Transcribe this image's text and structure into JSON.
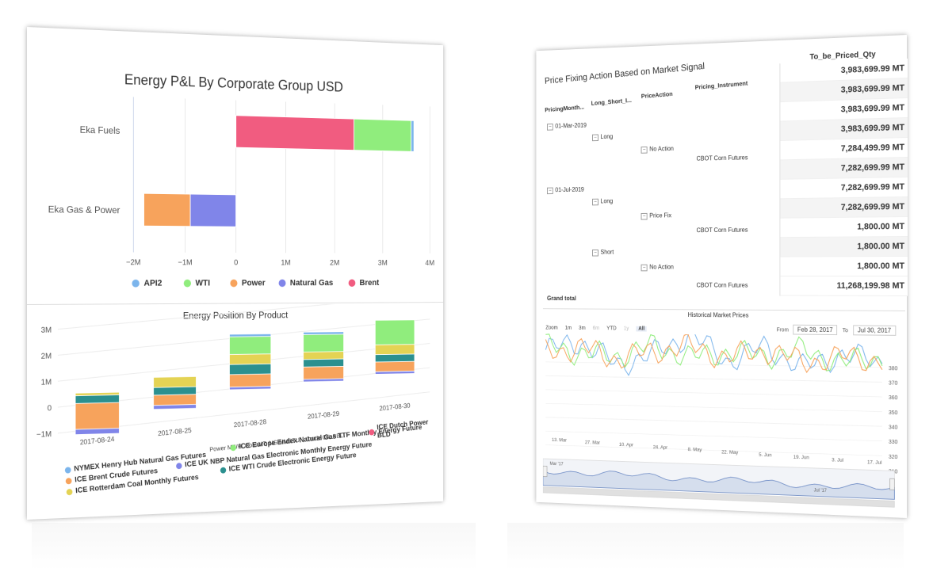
{
  "pnl": {
    "title": "Energy P&L By Corporate Group USD",
    "groups": [
      "Eka Fuels",
      "Eka Gas & Power"
    ],
    "x_ticks": [
      "−2M",
      "−1M",
      "0",
      "1M",
      "2M",
      "3M",
      "4M"
    ],
    "legend": [
      {
        "label": "API2",
        "color": "#7cb5ec"
      },
      {
        "label": "WTI",
        "color": "#90ed7d"
      },
      {
        "label": "Power",
        "color": "#f7a35c"
      },
      {
        "label": "Natural Gas",
        "color": "#8085e9"
      },
      {
        "label": "Brent",
        "color": "#f15c80"
      }
    ]
  },
  "position": {
    "title": "Energy Position By Product",
    "y_ticks": [
      "3M",
      "2M",
      "1M",
      "0",
      "−1M"
    ],
    "x_ticks": [
      "2017-08-24",
      "2017-08-25",
      "2017-08-28",
      "2017-08-29",
      "2017-08-30"
    ],
    "axis_title": "Power MWH, Coal MT, NG MMBTU, , Crude OIL BBL",
    "legend": [
      {
        "label": "NYMEX Henry Hub Natural Gas Futures",
        "color": "#7cb5ec"
      },
      {
        "label": "ICE Europe Endex Natural Gas TTF Monthly Energy Future",
        "color": "#90ed7d"
      },
      {
        "label": "ICE Dutch Power BLD",
        "color": "#f15c80"
      },
      {
        "label": "ICE Brent Crude Futures",
        "color": "#f7a35c"
      },
      {
        "label": "ICE UK NBP Natural Gas Electronic Monthly Energy Future",
        "color": "#8085e9"
      },
      {
        "label": "ICE Rotterdam Coal Monthly Futures",
        "color": "#e4d354"
      },
      {
        "label": "ICE WTI Crude Electronic Energy Future",
        "color": "#2b908f"
      }
    ]
  },
  "pivot": {
    "title": "Price Fixing Action Based on Market Signal",
    "measure_header": "To_be_Priced_Qty",
    "col_headers": [
      "PricingMonth...",
      "Long_Short_I...",
      "PriceAction",
      "Pricing_Instrument"
    ],
    "month1": "01-Mar-2019",
    "month2": "01-Jul-2019",
    "long": "Long",
    "short": "Short",
    "no_action": "No Action",
    "price_fix": "Price Fix",
    "instrument": "CBOT Corn Futures",
    "grand_total": "Grand total",
    "quantities": [
      "3,983,699.99 MT",
      "3,983,699.99 MT",
      "3,983,699.99 MT",
      "3,983,699.99 MT",
      "7,284,499.99 MT",
      "7,282,699.99 MT",
      "7,282,699.99 MT",
      "7,282,699.99 MT",
      "1,800.00 MT",
      "1,800.00 MT",
      "1,800.00 MT",
      "11,268,199.98 MT"
    ]
  },
  "history": {
    "title": "Historical Market Prices",
    "zoom_label": "Zoom",
    "ranges": [
      "1m",
      "3m",
      "6m",
      "YTD",
      "1y",
      "All"
    ],
    "from_label": "From",
    "from_value": "Feb 28, 2017",
    "to_label": "To",
    "to_value": "Jul 30, 2017",
    "y_ticks": [
      "380",
      "370",
      "360",
      "350",
      "340",
      "330",
      "320",
      "310"
    ],
    "x_ticks": [
      "13. Mar",
      "27. Mar",
      "10. Apr",
      "24. Apr",
      "8. May",
      "22. May",
      "5. Jun",
      "19. Jun",
      "3. Jul",
      "17. Jul"
    ],
    "nav_labels": [
      "Mar '17",
      "Jul '17"
    ]
  },
  "chart_data": [
    {
      "type": "bar",
      "title": "Energy P&L By Corporate Group USD",
      "orientation": "horizontal",
      "stacked": true,
      "categories": [
        "Eka Fuels",
        "Eka Gas & Power"
      ],
      "series": [
        {
          "name": "API2",
          "values": [
            60000,
            0
          ]
        },
        {
          "name": "WTI",
          "values": [
            1200000,
            0
          ]
        },
        {
          "name": "Power",
          "values": [
            0,
            -900000
          ]
        },
        {
          "name": "Natural Gas",
          "values": [
            0,
            -900000
          ]
        },
        {
          "name": "Brent",
          "values": [
            2400000,
            0
          ]
        }
      ],
      "xlim": [
        -2000000,
        4000000
      ],
      "legend": "bottom"
    },
    {
      "type": "bar",
      "title": "Energy Position By Product",
      "stacked": true,
      "categories": [
        "2017-08-24",
        "2017-08-25",
        "2017-08-28",
        "2017-08-29",
        "2017-08-30"
      ],
      "ylabel": "Power MWH, Coal MT, NG MMBTU, , Crude OIL BBL",
      "ylim": [
        -1000000,
        3000000
      ],
      "series": [
        {
          "name": "NYMEX Henry Hub Natural Gas Futures",
          "values": [
            0,
            0,
            100000,
            100000,
            0
          ]
        },
        {
          "name": "ICE Europe Endex Natural Gas TTF Monthly Energy Future",
          "values": [
            0,
            0,
            700000,
            700000,
            1000000
          ]
        },
        {
          "name": "ICE Dutch Power BLD",
          "values": [
            0,
            0,
            0,
            0,
            0
          ]
        },
        {
          "name": "ICE Brent Crude Futures",
          "values": [
            -1000000,
            -400000,
            500000,
            500000,
            400000
          ]
        },
        {
          "name": "ICE UK NBP Natural Gas Electronic Monthly Energy Future",
          "values": [
            -200000,
            -150000,
            -100000,
            -100000,
            -100000
          ]
        },
        {
          "name": "ICE Rotterdam Coal Monthly Futures",
          "values": [
            100000,
            400000,
            400000,
            300000,
            400000
          ]
        },
        {
          "name": "ICE WTI Crude Electronic Energy Future",
          "values": [
            300000,
            300000,
            400000,
            300000,
            300000
          ]
        }
      ],
      "legend": "bottom"
    },
    {
      "type": "line",
      "title": "Historical Market Prices",
      "x": [
        "13. Mar",
        "27. Mar",
        "10. Apr",
        "24. Apr",
        "8. May",
        "22. May",
        "5. Jun",
        "19. Jun",
        "3. Jul",
        "17. Jul"
      ],
      "series": [
        {
          "values": [
            362,
            368,
            352,
            360,
            374,
            356,
            366,
            352,
            362,
            356
          ]
        },
        {
          "values": [
            365,
            360,
            358,
            366,
            358,
            362,
            360,
            364,
            356,
            360
          ]
        },
        {
          "values": [
            360,
            364,
            356,
            362,
            366,
            358,
            364,
            356,
            360,
            358
          ]
        }
      ],
      "ylim": [
        310,
        385
      ]
    }
  ]
}
